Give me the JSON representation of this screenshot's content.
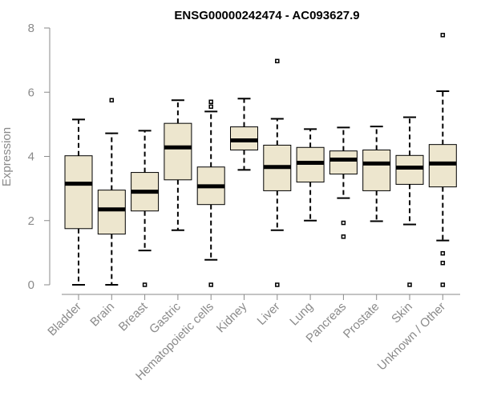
{
  "chart_data": {
    "type": "boxplot",
    "title": "ENSG00000242474 - AC093627.9",
    "ylabel": "Expression",
    "xlabel": "",
    "ylim": [
      0,
      8
    ],
    "yticks": [
      0,
      2,
      4,
      6,
      8
    ],
    "colors": {
      "box_fill": "#ede6ce",
      "box_stroke": "#000000",
      "axis": "#8a8a8a",
      "title": "#000000"
    },
    "categories": [
      "Bladder",
      "Brain",
      "Breast",
      "Gastric",
      "Hematopoietic cells",
      "Kidney",
      "Liver",
      "Lung",
      "Pancreas",
      "Prostate",
      "Skin",
      "Unknown / Other"
    ],
    "boxes": [
      {
        "category": "Bladder",
        "min": 0.0,
        "q1": 1.75,
        "median": 3.15,
        "q3": 4.02,
        "max": 5.15,
        "outliers": []
      },
      {
        "category": "Brain",
        "min": 0.0,
        "q1": 1.58,
        "median": 2.35,
        "q3": 2.95,
        "max": 4.72,
        "outliers": [
          5.75
        ]
      },
      {
        "category": "Breast",
        "min": 1.07,
        "q1": 2.3,
        "median": 2.9,
        "q3": 3.5,
        "max": 4.8,
        "outliers": [
          0.0
        ]
      },
      {
        "category": "Gastric",
        "min": 1.7,
        "q1": 3.27,
        "median": 4.28,
        "q3": 5.03,
        "max": 5.75,
        "outliers": []
      },
      {
        "category": "Hematopoietic cells",
        "min": 0.78,
        "q1": 2.5,
        "median": 3.07,
        "q3": 3.67,
        "max": 5.4,
        "outliers": [
          5.7,
          5.55,
          0.0
        ]
      },
      {
        "category": "Kidney",
        "min": 3.58,
        "q1": 4.2,
        "median": 4.5,
        "q3": 4.92,
        "max": 5.8,
        "outliers": []
      },
      {
        "category": "Liver",
        "min": 1.7,
        "q1": 2.93,
        "median": 3.67,
        "q3": 4.35,
        "max": 5.17,
        "outliers": [
          6.97,
          0.0
        ]
      },
      {
        "category": "Lung",
        "min": 2.0,
        "q1": 3.2,
        "median": 3.8,
        "q3": 4.28,
        "max": 4.85,
        "outliers": []
      },
      {
        "category": "Pancreas",
        "min": 2.7,
        "q1": 3.45,
        "median": 3.9,
        "q3": 4.17,
        "max": 4.9,
        "outliers": [
          1.93,
          1.5
        ]
      },
      {
        "category": "Prostate",
        "min": 1.98,
        "q1": 2.93,
        "median": 3.78,
        "q3": 4.2,
        "max": 4.93,
        "outliers": []
      },
      {
        "category": "Skin",
        "min": 1.88,
        "q1": 3.13,
        "median": 3.65,
        "q3": 4.03,
        "max": 5.22,
        "outliers": [
          0.0
        ]
      },
      {
        "category": "Unknown / Other",
        "min": 1.38,
        "q1": 3.05,
        "median": 3.78,
        "q3": 4.37,
        "max": 6.03,
        "outliers": [
          7.78,
          0.98,
          0.68,
          0.0
        ]
      }
    ]
  }
}
